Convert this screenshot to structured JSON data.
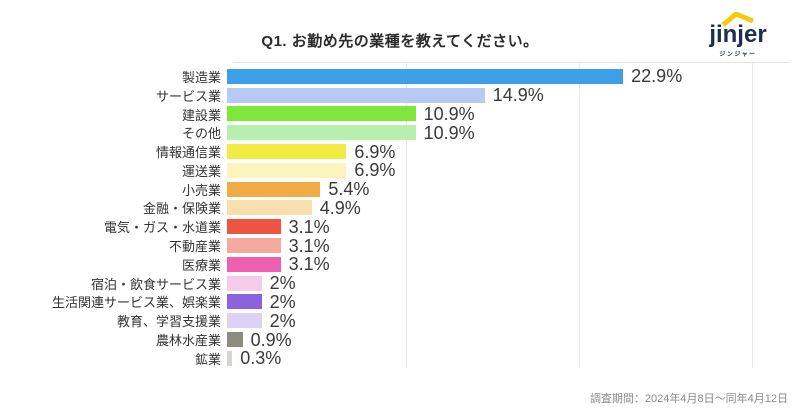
{
  "header": {
    "title": "Q1. お勤め先の業種を教えてください。"
  },
  "logo": {
    "name": "jinjer",
    "subtitle": "ジンジャー",
    "navy": "#1c2f4d",
    "yellow": "#f2cc0d"
  },
  "chart_data": {
    "type": "bar",
    "orientation": "horizontal",
    "title": "Q1. お勤め先の業種を教えてください。",
    "categories": [
      "製造業",
      "サービス業",
      "建設業",
      "その他",
      "情報通信業",
      "運送業",
      "小売業",
      "金融・保険業",
      "電気・ガス・水道業",
      "不動産業",
      "医療業",
      "宿泊・飲食サービス業",
      "生活関連サービス業、娯楽業",
      "教育、学習支援業",
      "農林水産業",
      "鉱業"
    ],
    "values": [
      22.9,
      14.9,
      10.9,
      10.9,
      6.9,
      6.9,
      5.4,
      4.9,
      3.1,
      3.1,
      3.1,
      2,
      2,
      2,
      0.9,
      0.3
    ],
    "value_labels": [
      "22.9%",
      "14.9%",
      "10.9%",
      "10.9%",
      "6.9%",
      "6.9%",
      "5.4%",
      "4.9%",
      "3.1%",
      "3.1%",
      "3.1%",
      "2%",
      "2%",
      "2%",
      "0.9%",
      "0.3%"
    ],
    "bar_colors": [
      "#3d9fe8",
      "#b7c9f4",
      "#7fe63c",
      "#b9efae",
      "#f0ec44",
      "#f9f5bd",
      "#f0ab45",
      "#f9dfad",
      "#ef5443",
      "#f4aa9e",
      "#ee5fb0",
      "#f4cbe9",
      "#8a63dd",
      "#dcd2f4",
      "#8b8b80",
      "#d6d4cd"
    ],
    "xlim": [
      0,
      30
    ],
    "gridlines_pct": [
      10,
      20,
      30
    ],
    "grid": true,
    "legend": false,
    "unit": "%"
  },
  "footer": {
    "survey_period": "調査期間：2024年4月8日～同年4月12日"
  }
}
